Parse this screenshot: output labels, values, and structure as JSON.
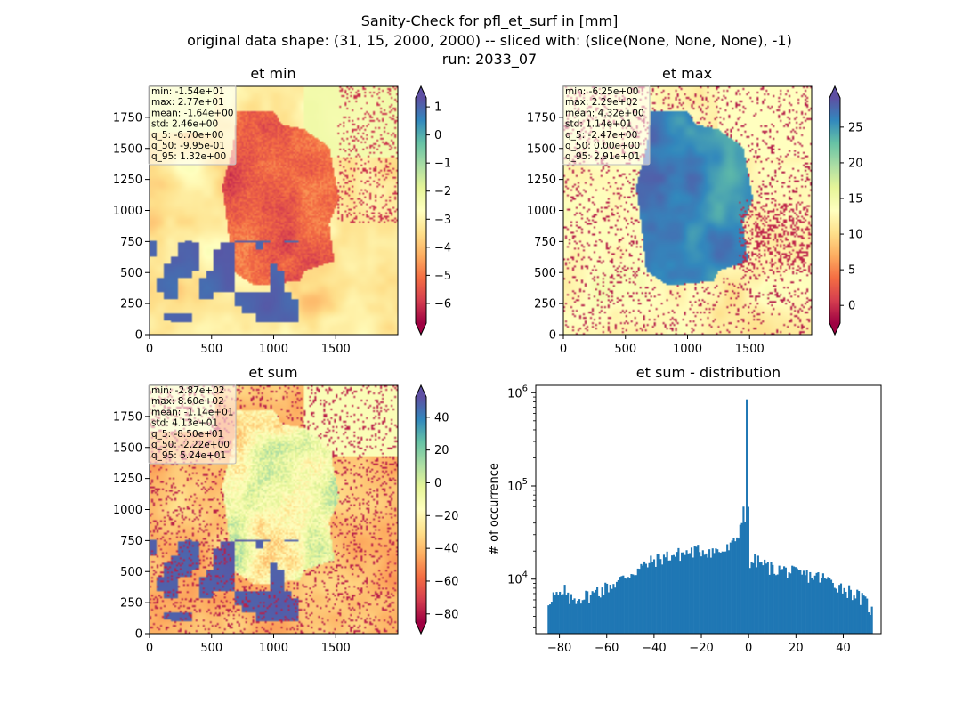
{
  "figure": {
    "title_lines": [
      "Sanity-Check for pfl_et_surf in [mm]",
      "original data shape: (31, 15, 2000, 2000) -- sliced with: (slice(None, None, None), -1)",
      "run: 2033_07"
    ]
  },
  "panels": [
    {
      "key": "et_min",
      "title": "et min",
      "stats": [
        "min: -1.54e+01",
        "max: 2.77e+01",
        "mean: -1.64e+00",
        "std: 2.46e+00",
        "q_5: -6.70e+00",
        "q_50: -9.95e-01",
        "q_95: 1.32e+00"
      ],
      "xticks": [
        "0",
        "500",
        "1000",
        "1500"
      ],
      "yticks": [
        "0",
        "250",
        "500",
        "750",
        "1000",
        "1250",
        "1500",
        "1750"
      ],
      "colorbar": {
        "range": [
          -6.7,
          1.32
        ],
        "ticks": [
          "1",
          "0",
          "−1",
          "−2",
          "−3",
          "−4",
          "−5",
          "−6"
        ],
        "tick_values": [
          1,
          0,
          -1,
          -2,
          -3,
          -4,
          -5,
          -6
        ],
        "colormap": "Spectral",
        "extend": "both"
      }
    },
    {
      "key": "et_max",
      "title": "et max",
      "stats": [
        "min: -6.25e+00",
        "max: 2.29e+02",
        "mean: 4.32e+00",
        "std: 1.14e+01",
        "q_5: -2.47e+00",
        "q_50: 0.00e+00",
        "q_95: 2.91e+01"
      ],
      "xticks": [
        "0",
        "500",
        "1000",
        "1500"
      ],
      "yticks": [
        "0",
        "250",
        "500",
        "750",
        "1000",
        "1250",
        "1500",
        "1750"
      ],
      "colorbar": {
        "range": [
          -2.47,
          29.1
        ],
        "ticks": [
          "25",
          "20",
          "15",
          "10",
          "5",
          "0"
        ],
        "tick_values": [
          25,
          20,
          15,
          10,
          5,
          0
        ],
        "colormap": "Spectral",
        "extend": "both"
      }
    },
    {
      "key": "et_sum",
      "title": "et sum",
      "stats": [
        "min: -2.87e+02",
        "max: 8.60e+02",
        "mean: -1.14e+01",
        "std: 4.13e+01",
        "q_5: -8.50e+01",
        "q_50: -2.22e+00",
        "q_95: 5.24e+01"
      ],
      "xticks": [
        "0",
        "500",
        "1000",
        "1500"
      ],
      "yticks": [
        "0",
        "250",
        "500",
        "750",
        "1000",
        "1250",
        "1500",
        "1750"
      ],
      "colorbar": {
        "range": [
          -85.0,
          52.4
        ],
        "ticks": [
          "40",
          "20",
          "0",
          "−20",
          "−40",
          "−60",
          "−80"
        ],
        "tick_values": [
          40,
          20,
          0,
          -20,
          -40,
          -60,
          -80
        ],
        "colormap": "Spectral",
        "extend": "both"
      }
    }
  ],
  "chart_data": {
    "type": "bar",
    "title": "et sum - distribution",
    "xlabel": "",
    "ylabel": "# of occurrence",
    "yscale": "log",
    "xlim": [
      -90,
      56
    ],
    "ylim": [
      2600,
      1200000
    ],
    "xticks": [
      "−80",
      "−60",
      "−40",
      "−20",
      "0",
      "20",
      "40"
    ],
    "xtick_values": [
      -80,
      -60,
      -40,
      -20,
      0,
      20,
      40
    ],
    "yticks": [
      "10^4",
      "10^5",
      "10^6"
    ],
    "ytick_values": [
      10000,
      100000,
      1000000
    ],
    "bar_color": "#1f77b4",
    "bin_range": [
      -85,
      52.4
    ],
    "bin_count": 200,
    "anchor_points": {
      "x": [
        -85,
        -83,
        -80,
        -75,
        -70,
        -65,
        -60,
        -55,
        -50,
        -45,
        -40,
        -35,
        -30,
        -25,
        -20,
        -15,
        -10,
        -7,
        -5,
        -3,
        -2,
        -1,
        -0.5,
        0,
        0.5,
        1,
        3,
        5,
        10,
        15,
        20,
        25,
        30,
        35,
        40,
        45,
        50,
        52
      ],
      "y": [
        5500,
        6800,
        6500,
        6000,
        6500,
        7000,
        8200,
        9500,
        11500,
        13500,
        16000,
        17500,
        18500,
        19500,
        20500,
        20000,
        20000,
        23000,
        28000,
        40000,
        60000,
        30000,
        850000,
        18000,
        13000,
        16000,
        16000,
        15000,
        13000,
        12500,
        11500,
        11000,
        10500,
        9500,
        8000,
        7000,
        5500,
        4500
      ]
    },
    "spikes": [
      {
        "x": -1.0,
        "y": 850000
      },
      {
        "x": -2.0,
        "y": 60000
      },
      {
        "x": -3.0,
        "y": 40000
      },
      {
        "x": -64.0,
        "y": 8200
      },
      {
        "x": -78.0,
        "y": 8700
      },
      {
        "x": -37.0,
        "y": 11000
      }
    ]
  }
}
